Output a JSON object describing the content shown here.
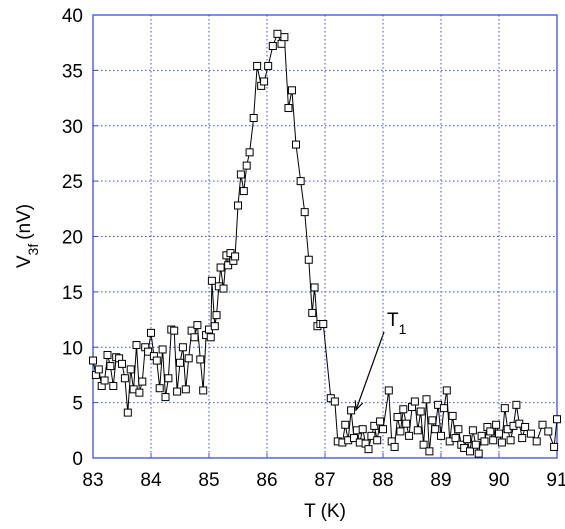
{
  "chart_data": {
    "type": "line",
    "xlabel": "T (K)",
    "ylabel": {
      "main": "V",
      "sub": "3f",
      "unit": "(nV)"
    },
    "annotation": {
      "text": "T",
      "sub": "1"
    },
    "x": [
      83.0,
      83.05,
      83.1,
      83.15,
      83.2,
      83.25,
      83.3,
      83.35,
      83.4,
      83.45,
      83.5,
      83.55,
      83.6,
      83.65,
      83.7,
      83.75,
      83.8,
      83.85,
      83.9,
      83.95,
      84.0,
      84.05,
      84.1,
      84.15,
      84.2,
      84.25,
      84.3,
      84.35,
      84.4,
      84.45,
      84.5,
      84.55,
      84.6,
      84.65,
      84.7,
      84.75,
      84.8,
      84.85,
      84.9,
      84.95,
      85.0,
      85.03,
      85.05,
      85.1,
      85.13,
      85.17,
      85.2,
      85.25,
      85.3,
      85.33,
      85.37,
      85.42,
      85.45,
      85.5,
      85.55,
      85.6,
      85.65,
      85.7,
      85.77,
      85.83,
      85.9,
      85.95,
      86.02,
      86.1,
      86.18,
      86.25,
      86.3,
      86.37,
      86.43,
      86.5,
      86.58,
      86.65,
      86.72,
      86.78,
      86.82,
      86.87,
      86.92,
      86.97,
      87.1,
      87.17,
      87.22,
      87.3,
      87.35,
      87.4,
      87.45,
      87.5,
      87.55,
      87.6,
      87.65,
      87.7,
      87.75,
      87.8,
      87.85,
      87.9,
      87.95,
      88.0,
      88.1,
      88.15,
      88.2,
      88.25,
      88.3,
      88.35,
      88.4,
      88.45,
      88.5,
      88.55,
      88.6,
      88.65,
      88.7,
      88.75,
      88.8,
      88.85,
      88.9,
      88.95,
      89.0,
      89.05,
      89.1,
      89.15,
      89.2,
      89.25,
      89.3,
      89.35,
      89.4,
      89.45,
      89.5,
      89.55,
      89.6,
      89.65,
      89.7,
      89.75,
      89.8,
      89.85,
      89.9,
      89.95,
      90.0,
      90.05,
      90.1,
      90.15,
      90.2,
      90.25,
      90.3,
      90.35,
      90.4,
      90.45,
      90.55,
      90.65,
      90.75,
      90.85,
      90.95,
      91.0
    ],
    "values": [
      8.8,
      7.5,
      8.0,
      6.5,
      7.0,
      9.3,
      8.3,
      6.5,
      9.1,
      9.0,
      8.5,
      7.2,
      4.1,
      8.0,
      6.2,
      10.2,
      5.9,
      6.9,
      10.0,
      9.6,
      11.3,
      9.2,
      8.8,
      6.3,
      9.8,
      5.5,
      7.2,
      11.6,
      11.5,
      6.0,
      8.6,
      10.0,
      6.2,
      9.0,
      11.5,
      10.9,
      12.0,
      8.9,
      6.1,
      11.1,
      11.6,
      10.9,
      16.0,
      11.9,
      12.9,
      15.5,
      17.2,
      15.3,
      18.3,
      17.4,
      18.5,
      17.8,
      18.2,
      22.8,
      25.6,
      24.1,
      26.4,
      27.6,
      30.7,
      35.4,
      33.6,
      34.0,
      35.4,
      37.2,
      38.3,
      37.4,
      38.0,
      31.6,
      33.2,
      28.3,
      25.0,
      22.2,
      17.9,
      13.1,
      15.4,
      11.9,
      12.1,
      12.1,
      5.4,
      5.1,
      1.5,
      1.4,
      3.0,
      1.6,
      4.3,
      1.8,
      2.5,
      1.4,
      2.6,
      1.3,
      0.8,
      2.0,
      2.9,
      1.6,
      3.3,
      2.6,
      6.1,
      1.5,
      1.0,
      3.7,
      2.4,
      4.4,
      3.1,
      2.0,
      4.6,
      5.1,
      2.5,
      4.2,
      1.2,
      5.3,
      0.6,
      3.4,
      2.6,
      4.8,
      2.0,
      4.5,
      6.1,
      1.5,
      3.8,
      1.8,
      2.6,
      1.2,
      0.9,
      1.7,
      0.6,
      2.5,
      1.2,
      0.4,
      2.0,
      1.5,
      2.8,
      2.4,
      1.6,
      3.0,
      2.2,
      1.4,
      4.5,
      2.6,
      1.6,
      2.9,
      4.8,
      3.1,
      1.8,
      2.8,
      2.2,
      1.5,
      3.0,
      2.4,
      1.0,
      3.5
    ],
    "color": "#000000",
    "xlim": [
      83,
      91
    ],
    "xticks": [
      83,
      84,
      85,
      86,
      87,
      88,
      89,
      90,
      91
    ],
    "ylim": [
      0,
      40
    ],
    "yticks": [
      0,
      5,
      10,
      15,
      20,
      25,
      30,
      35,
      40
    ],
    "grid": true
  }
}
